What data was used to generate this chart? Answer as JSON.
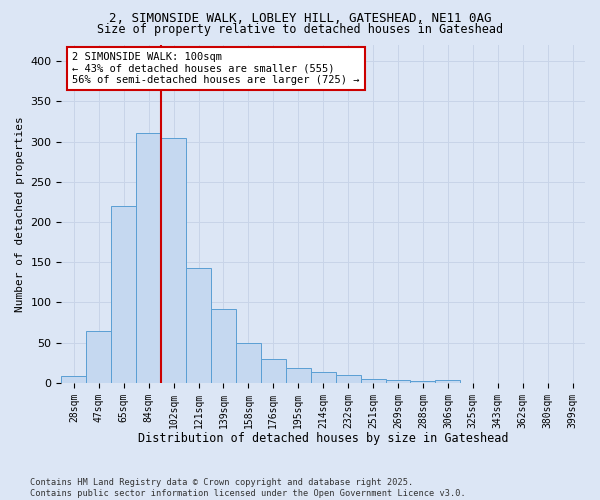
{
  "title_line1": "2, SIMONSIDE WALK, LOBLEY HILL, GATESHEAD, NE11 0AG",
  "title_line2": "Size of property relative to detached houses in Gateshead",
  "xlabel": "Distribution of detached houses by size in Gateshead",
  "ylabel": "Number of detached properties",
  "categories": [
    "28sqm",
    "47sqm",
    "65sqm",
    "84sqm",
    "102sqm",
    "121sqm",
    "139sqm",
    "158sqm",
    "176sqm",
    "195sqm",
    "214sqm",
    "232sqm",
    "251sqm",
    "269sqm",
    "288sqm",
    "306sqm",
    "325sqm",
    "343sqm",
    "362sqm",
    "380sqm",
    "399sqm"
  ],
  "bar_heights": [
    8,
    65,
    220,
    310,
    305,
    143,
    92,
    49,
    30,
    19,
    13,
    10,
    5,
    3,
    2,
    4,
    0,
    0,
    0,
    0,
    0
  ],
  "bar_color": "#c5d8f0",
  "bar_edge_color": "#5a9fd4",
  "grid_color": "#c8d4e8",
  "background_color": "#dce6f5",
  "annotation_box_color": "#ffffff",
  "annotation_border_color": "#cc0000",
  "vline_color": "#cc0000",
  "annotation_text_line1": "2 SIMONSIDE WALK: 100sqm",
  "annotation_text_line2": "← 43% of detached houses are smaller (555)",
  "annotation_text_line3": "56% of semi-detached houses are larger (725) →",
  "footer_line1": "Contains HM Land Registry data © Crown copyright and database right 2025.",
  "footer_line2": "Contains public sector information licensed under the Open Government Licence v3.0.",
  "ylim": [
    0,
    420
  ],
  "yticks": [
    0,
    50,
    100,
    150,
    200,
    250,
    300,
    350,
    400
  ]
}
